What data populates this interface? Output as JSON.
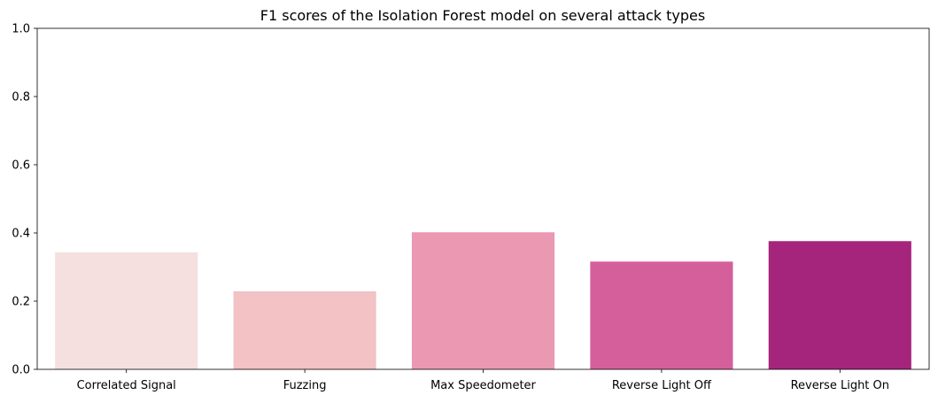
{
  "chart_data": {
    "type": "bar",
    "title": "F1 scores of the Isolation Forest model on several attack types",
    "xlabel": "",
    "ylabel": "",
    "categories": [
      "Correlated Signal",
      "Fuzzing",
      "Max Speedometer",
      "Reverse Light Off",
      "Reverse Light On"
    ],
    "values": [
      0.343,
      0.229,
      0.402,
      0.316,
      0.376
    ],
    "colors": [
      "#f6dfdf",
      "#f2c2c4",
      "#eb98b3",
      "#d55f9b",
      "#a5257d"
    ],
    "ylim": [
      0,
      1.0
    ],
    "yticks": [
      "0.0",
      "0.2",
      "0.4",
      "0.6",
      "0.8",
      "1.0"
    ],
    "grid": false,
    "legend": "none"
  }
}
